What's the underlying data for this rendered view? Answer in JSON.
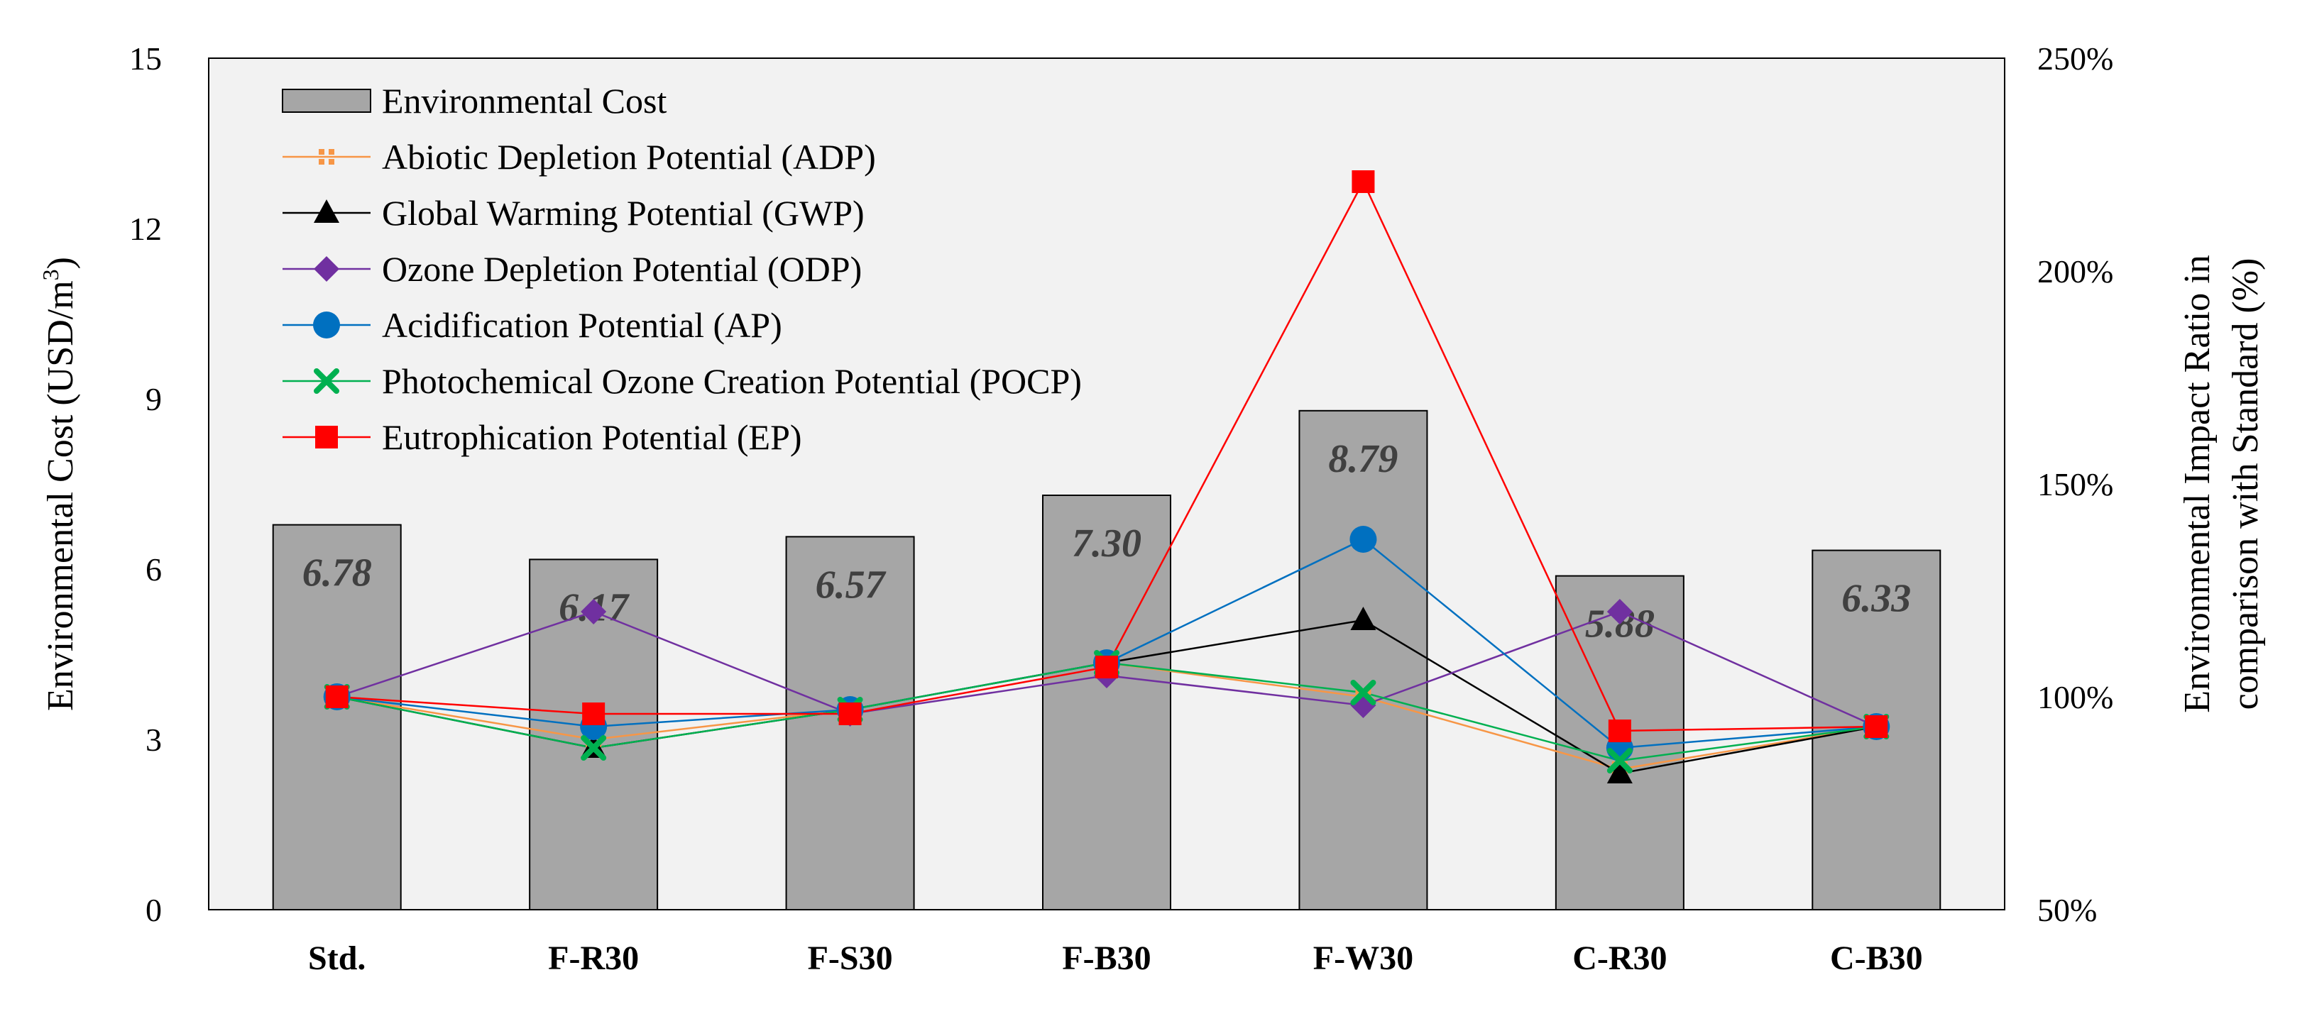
{
  "chart_data": {
    "type": "bar",
    "categories": [
      "Std.",
      "F-R30",
      "F-S30",
      "F-B30",
      "F-W30",
      "C-R30",
      "C-B30"
    ],
    "y_left": {
      "label_main": "Environmental Cost (USD/m",
      "label_sup": "3",
      "label_end": ")",
      "range": [
        0,
        15
      ],
      "ticks": [
        0,
        3,
        6,
        9,
        12,
        15
      ],
      "tick_labels": [
        "0",
        "3",
        "6",
        "9",
        "12",
        "15"
      ]
    },
    "y_right": {
      "label_line1": "Environmental Impact Ratio in",
      "label_line2": "comparison with Standard (%)",
      "range": [
        50,
        250
      ],
      "ticks": [
        50,
        100,
        150,
        200,
        250
      ],
      "tick_labels": [
        "50%",
        "100%",
        "150%",
        "200%",
        "250%"
      ]
    },
    "bars": {
      "name": "Environmental Cost",
      "values": [
        6.78,
        6.17,
        6.57,
        7.3,
        8.79,
        5.88,
        6.33
      ],
      "labels": [
        "6.78",
        "6.17",
        "6.57",
        "7.30",
        "8.79",
        "5.88",
        "6.33"
      ],
      "color": "#A6A6A6"
    },
    "series": [
      {
        "name": "Abiotic Depletion Potential (ADP)",
        "marker": "plus-square",
        "color": "#F79646",
        "values": [
          100,
          90,
          97,
          108,
          100,
          83,
          93
        ]
      },
      {
        "name": "Global Warming Potential (GWP)",
        "marker": "triangle",
        "color": "#000000",
        "values": [
          100,
          88,
          97,
          108,
          118,
          82,
          93
        ]
      },
      {
        "name": "Ozone Depletion Potential (ODP)",
        "marker": "diamond",
        "color": "#7030A0",
        "values": [
          100,
          120,
          96,
          105,
          98,
          120,
          93
        ]
      },
      {
        "name": "Acidification Potential (AP)",
        "marker": "circle",
        "color": "#0070C0",
        "values": [
          100,
          93,
          97,
          108,
          137,
          88,
          93
        ]
      },
      {
        "name": "Photochemical Ozone Creation Potential (POCP)",
        "marker": "x",
        "color": "#00B050",
        "values": [
          100,
          88,
          97,
          108,
          101,
          85,
          93
        ]
      },
      {
        "name": "Eutrophication Potential (EP)",
        "marker": "square",
        "color": "#FF0000",
        "values": [
          100,
          96,
          96,
          107,
          221,
          92,
          93
        ]
      }
    ],
    "legend_position": "top-left",
    "plot_background": "#F2F2F2",
    "grid": false
  }
}
